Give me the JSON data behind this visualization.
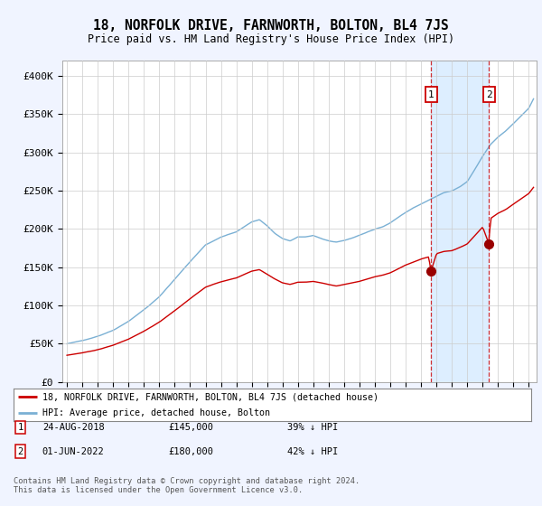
{
  "title": "18, NORFOLK DRIVE, FARNWORTH, BOLTON, BL4 7JS",
  "subtitle": "Price paid vs. HM Land Registry's House Price Index (HPI)",
  "legend_line1": "18, NORFOLK DRIVE, FARNWORTH, BOLTON, BL4 7JS (detached house)",
  "legend_line2": "HPI: Average price, detached house, Bolton",
  "footnote": "Contains HM Land Registry data © Crown copyright and database right 2024.\nThis data is licensed under the Open Government Licence v3.0.",
  "sale1_date": "24-AUG-2018",
  "sale1_price": 145000,
  "sale1_label": "£145,000",
  "sale1_pct": "39% ↓ HPI",
  "sale1_year": 2018.64,
  "sale2_date": "01-JUN-2022",
  "sale2_price": 180000,
  "sale2_label": "£180,000",
  "sale2_pct": "42% ↓ HPI",
  "sale2_year": 2022.42,
  "ylim": [
    0,
    420000
  ],
  "yticks": [
    0,
    50000,
    100000,
    150000,
    200000,
    250000,
    300000,
    350000,
    400000
  ],
  "xlim_left": 1994.7,
  "xlim_right": 2025.5,
  "background_color": "#f0f4ff",
  "plot_bg": "#ffffff",
  "grid_color": "#cccccc",
  "red_color": "#cc0000",
  "blue_color": "#7ab0d4",
  "marker_color": "#990000",
  "box_color": "#cc0000",
  "span_color": "#ddeeff"
}
